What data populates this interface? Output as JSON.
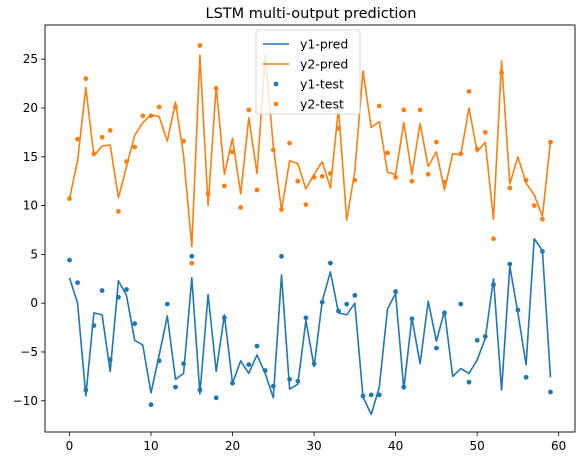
{
  "chart_data": {
    "type": "line",
    "title": "LSTM multi-output prediction",
    "xlabel": "",
    "ylabel": "",
    "xlim": [
      -3,
      62
    ],
    "ylim": [
      -13.2,
      28.5
    ],
    "xticks": [
      0,
      10,
      20,
      30,
      40,
      50,
      60
    ],
    "yticks": [
      -10,
      -5,
      0,
      5,
      10,
      15,
      20,
      25
    ],
    "x": [
      0,
      1,
      2,
      3,
      4,
      5,
      6,
      7,
      8,
      9,
      10,
      11,
      12,
      13,
      14,
      15,
      16,
      17,
      18,
      19,
      20,
      21,
      22,
      23,
      24,
      25,
      26,
      27,
      28,
      29,
      30,
      31,
      32,
      33,
      34,
      35,
      36,
      37,
      38,
      39,
      40,
      41,
      42,
      43,
      44,
      45,
      46,
      47,
      48,
      49,
      50,
      51,
      52,
      53,
      54,
      55,
      56,
      57,
      58,
      59
    ],
    "legend_position": "upper center",
    "grid": false,
    "series": [
      {
        "name": "y1-pred",
        "kind": "line",
        "color": "#1f77b4",
        "values": [
          2.6,
          0.0,
          -9.5,
          -1.0,
          -1.2,
          -7.0,
          2.3,
          0.8,
          -3.8,
          -4.3,
          -9.2,
          -5.3,
          -1.3,
          -7.8,
          -7.2,
          2.6,
          -9.3,
          0.9,
          -7.0,
          -1.2,
          -8.2,
          -5.9,
          -7.2,
          -5.3,
          -7.2,
          -9.7,
          2.9,
          -8.8,
          -8.3,
          -1.8,
          -6.5,
          0.2,
          3.2,
          -1.0,
          -1.2,
          0.0,
          -9.6,
          -11.4,
          -8.6,
          -0.6,
          1.0,
          -8.8,
          -1.5,
          -6.2,
          0.2,
          -3.9,
          -0.8,
          -7.5,
          -6.7,
          -7.2,
          -5.8,
          -3.6,
          2.5,
          -8.9,
          3.8,
          -1.0,
          -6.3,
          6.6,
          5.4,
          -7.6
        ]
      },
      {
        "name": "y2-pred",
        "kind": "line",
        "color": "#ff7f0e",
        "values": [
          10.7,
          14.6,
          22.1,
          15.1,
          16.1,
          16.2,
          10.8,
          14.0,
          17.2,
          18.5,
          19.3,
          19.1,
          16.6,
          20.6,
          15.1,
          5.8,
          25.4,
          10.0,
          22.2,
          13.2,
          16.9,
          11.2,
          19.0,
          13.3,
          25.4,
          16.1,
          9.5,
          14.6,
          14.3,
          11.7,
          13.2,
          14.5,
          11.8,
          20.0,
          8.5,
          13.5,
          23.8,
          18.0,
          18.6,
          13.4,
          13.2,
          18.5,
          13.2,
          18.4,
          14.0,
          15.5,
          11.6,
          15.3,
          15.2,
          20.0,
          15.5,
          16.5,
          8.6,
          24.8,
          12.2,
          15.0,
          12.3,
          11.1,
          8.9,
          16.6
        ]
      },
      {
        "name": "y1-test",
        "kind": "scatter",
        "color": "#1f77b4",
        "values": [
          4.4,
          2.1,
          -8.9,
          -2.3,
          1.3,
          -5.8,
          0.6,
          1.4,
          -2.1,
          null,
          -10.4,
          -5.9,
          -0.1,
          -8.6,
          -6.2,
          4.8,
          -8.9,
          null,
          -9.7,
          -1.5,
          -8.2,
          null,
          -6.3,
          -4.4,
          -6.9,
          -8.5,
          4.8,
          -7.8,
          -8.0,
          -1.5,
          -6.2,
          0.1,
          4.1,
          -0.8,
          -0.1,
          0.8,
          -9.5,
          -9.4,
          -9.4,
          null,
          1.2,
          -8.6,
          -1.6,
          null,
          null,
          -4.6,
          -1.0,
          null,
          -0.1,
          -8.1,
          -3.8,
          -3.4,
          1.9,
          null,
          4.0,
          -0.7,
          -7.6,
          null,
          5.3,
          -9.1
        ]
      },
      {
        "name": "y2-test",
        "kind": "scatter",
        "color": "#ff7f0e",
        "values": [
          10.7,
          16.8,
          23.0,
          15.3,
          17.0,
          17.7,
          9.4,
          14.5,
          16.0,
          19.2,
          19.2,
          20.1,
          null,
          20.1,
          16.6,
          4.1,
          26.4,
          11.2,
          22.0,
          12.0,
          15.5,
          9.8,
          19.8,
          11.6,
          null,
          15.7,
          9.6,
          16.4,
          12.5,
          10.1,
          12.9,
          13.0,
          13.3,
          17.9,
          null,
          12.6,
          null,
          null,
          20.2,
          15.4,
          12.9,
          19.8,
          12.5,
          19.8,
          13.2,
          16.5,
          12.4,
          null,
          15.3,
          21.7,
          15.8,
          17.5,
          6.6,
          23.6,
          11.8,
          null,
          12.6,
          10.0,
          8.6,
          16.5
        ]
      }
    ]
  }
}
